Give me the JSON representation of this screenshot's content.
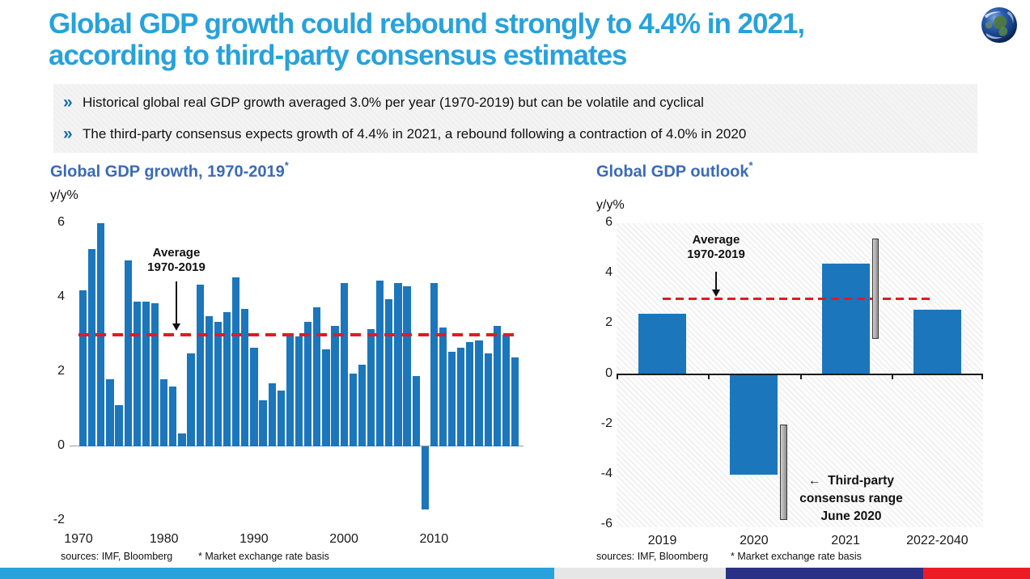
{
  "header": {
    "title_line1": "Global GDP growth could rebound strongly to 4.4% in 2021,",
    "title_line2": "according to third-party consensus estimates",
    "bullet_icon": "»",
    "bullets": [
      "Historical global real GDP growth averaged 3.0% per year (1970-2019) but can be volatile and cyclical",
      "The third-party consensus expects growth of 4.4% in 2021, a rebound following a contraction of 4.0% in 2020"
    ]
  },
  "colors": {
    "accent": "#27A2DB",
    "chart_title": "#3B6AB5",
    "bar": "#1B76BB",
    "dash_red": "#E11B22",
    "chevron": "#1B6CA8",
    "stripe_navy": "#2B3087",
    "stripe_red": "#ED1C24",
    "stripe_gray": "#E6E6E6"
  },
  "chart_data": [
    {
      "type": "bar",
      "title": "Global GDP growth, 1970-2019",
      "footnote_marker": "*",
      "ylabel": "y/y%",
      "ylim": [
        -2,
        6
      ],
      "yticks": [
        6,
        4,
        2,
        0,
        -2
      ],
      "xticks": [
        1970,
        1980,
        1990,
        2000,
        2010
      ],
      "grid": false,
      "years": [
        1971,
        1972,
        1973,
        1974,
        1975,
        1976,
        1977,
        1978,
        1979,
        1980,
        1981,
        1982,
        1983,
        1984,
        1985,
        1986,
        1987,
        1988,
        1989,
        1990,
        1991,
        1992,
        1993,
        1994,
        1995,
        1996,
        1997,
        1998,
        1999,
        2000,
        2001,
        2002,
        2003,
        2004,
        2005,
        2006,
        2007,
        2008,
        2009,
        2010,
        2011,
        2012,
        2013,
        2014,
        2015,
        2016,
        2017,
        2018,
        2019
      ],
      "values": [
        4.2,
        5.3,
        6.0,
        1.8,
        1.1,
        5.0,
        3.9,
        3.9,
        3.85,
        1.8,
        1.6,
        0.35,
        2.5,
        4.35,
        3.5,
        3.35,
        3.6,
        4.55,
        3.7,
        2.65,
        1.25,
        1.7,
        1.5,
        3.05,
        2.95,
        3.35,
        3.75,
        2.6,
        3.25,
        4.4,
        1.95,
        2.2,
        3.15,
        4.45,
        3.95,
        4.4,
        4.3,
        1.9,
        -1.7,
        4.4,
        3.2,
        2.55,
        2.65,
        2.8,
        2.85,
        2.5,
        3.25,
        3.0,
        2.4
      ],
      "average_line": {
        "value": 3.0,
        "label_lines": [
          "Average",
          "1970-2019"
        ]
      },
      "sources": "sources: IMF, Bloomberg",
      "note": "* Market exchange rate basis"
    },
    {
      "type": "bar",
      "title": "Global GDP outlook",
      "footnote_marker": "*",
      "ylabel": "y/y%",
      "ylim": [
        -6,
        6
      ],
      "yticks": [
        6,
        4,
        2,
        0,
        -2,
        -4,
        -6
      ],
      "grid": false,
      "categories": [
        "2019",
        "2020",
        "2021",
        "2022-2040"
      ],
      "values": [
        2.4,
        -4.0,
        4.4,
        2.55
      ],
      "average_line": {
        "value": 3.0,
        "label_lines": [
          "Average",
          "1970-2019"
        ]
      },
      "consensus_ranges": [
        {
          "category": "2020",
          "low": -5.8,
          "high": -2.0
        },
        {
          "category": "2021",
          "low": 1.4,
          "high": 5.4
        }
      ],
      "range_annotation": {
        "arrow": "←",
        "label_lines": [
          "Third-party",
          "consensus range",
          "June 2020"
        ]
      },
      "sources": "sources: IMF, Bloomberg",
      "note": "* Market exchange rate basis"
    }
  ],
  "footer_stripe": {
    "segments": [
      "#27A2DB",
      "#E6E6E6",
      "#2B3087",
      "#ED1C24"
    ]
  }
}
